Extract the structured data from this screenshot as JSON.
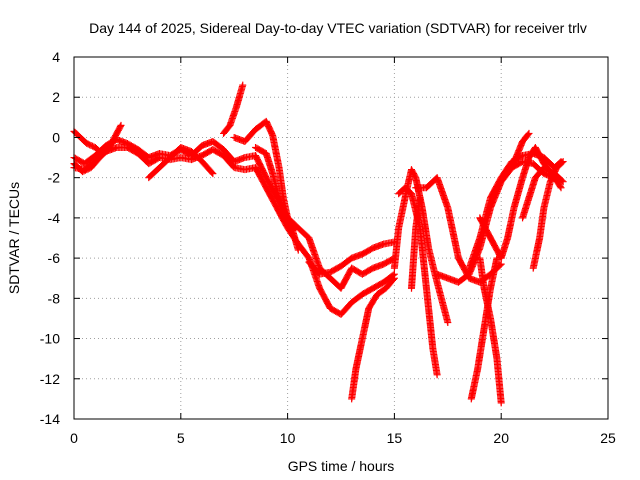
{
  "chart_data": {
    "type": "scatter",
    "title": "Day 144 of 2025, Sidereal Day-to-day VTEC variation (SDTVAR) for receiver trlv",
    "xlabel": "GPS time / hours",
    "ylabel": "SDTVAR / TECUs",
    "xlim": [
      0,
      25
    ],
    "ylim": [
      -14,
      4
    ],
    "x_ticks": [
      0,
      5,
      10,
      15,
      20,
      25
    ],
    "y_ticks": [
      4,
      2,
      0,
      -2,
      -4,
      -6,
      -8,
      -10,
      -12,
      -14
    ],
    "grid": true,
    "marker": "plus",
    "color": "#ff0000",
    "series": [
      {
        "points": [
          [
            0.0,
            -1.0
          ],
          [
            0.5,
            -1.3
          ],
          [
            1.0,
            -0.9
          ],
          [
            1.5,
            -0.4
          ],
          [
            2.0,
            -0.1
          ],
          [
            2.5,
            -0.3
          ],
          [
            3.0,
            -0.6
          ],
          [
            3.5,
            -1.0
          ],
          [
            4.0,
            -0.8
          ],
          [
            4.5,
            -0.9
          ],
          [
            5.0,
            -0.6
          ],
          [
            5.5,
            -0.9
          ],
          [
            6.0,
            -0.4
          ],
          [
            6.5,
            -0.2
          ],
          [
            7.0,
            -0.6
          ],
          [
            7.5,
            -1.2
          ],
          [
            8.0,
            -1.0
          ],
          [
            8.5,
            -0.9
          ],
          [
            9.0,
            -2.0
          ],
          [
            9.5,
            -3.0
          ],
          [
            10.0,
            -4.0
          ],
          [
            10.5,
            -4.5
          ],
          [
            11.0,
            -5.0
          ],
          [
            11.5,
            -6.5
          ],
          [
            12.0,
            -7.0
          ],
          [
            12.5,
            -7.5
          ],
          [
            13.0,
            -6.5
          ],
          [
            13.5,
            -6.8
          ],
          [
            14.0,
            -6.5
          ],
          [
            14.5,
            -6.3
          ],
          [
            15.0,
            -6.0
          ]
        ]
      },
      {
        "points": [
          [
            0.0,
            -1.5
          ],
          [
            0.5,
            -1.6
          ],
          [
            1.0,
            -1.2
          ],
          [
            1.5,
            -0.7
          ],
          [
            2.0,
            -0.5
          ],
          [
            2.5,
            -0.5
          ],
          [
            3.0,
            -0.8
          ],
          [
            3.5,
            -1.3
          ],
          [
            4.0,
            -1.0
          ],
          [
            4.5,
            -1.1
          ],
          [
            5.0,
            -1.0
          ],
          [
            5.5,
            -1.1
          ],
          [
            6.0,
            -0.9
          ],
          [
            6.5,
            -0.6
          ],
          [
            7.0,
            -0.9
          ],
          [
            7.5,
            -1.5
          ],
          [
            8.0,
            -1.6
          ],
          [
            8.5,
            -1.5
          ],
          [
            9.0,
            -2.5
          ],
          [
            9.5,
            -3.5
          ],
          [
            10.0,
            -4.5
          ],
          [
            10.5,
            -5.3
          ],
          [
            11.0,
            -6.0
          ],
          [
            11.5,
            -7.5
          ],
          [
            12.0,
            -8.5
          ],
          [
            12.5,
            -8.8
          ],
          [
            13.0,
            -8.2
          ],
          [
            13.5,
            -7.8
          ],
          [
            14.0,
            -7.5
          ],
          [
            14.5,
            -7.2
          ],
          [
            15.0,
            -6.8
          ]
        ]
      },
      {
        "points": [
          [
            0.0,
            0.3
          ],
          [
            0.3,
            0.0
          ],
          [
            0.6,
            -0.3
          ],
          [
            1.0,
            -0.5
          ],
          [
            1.3,
            -0.8
          ],
          [
            1.7,
            -0.3
          ]
        ]
      },
      {
        "points": [
          [
            0.0,
            -1.3
          ],
          [
            0.4,
            -1.7
          ],
          [
            0.8,
            -1.5
          ],
          [
            1.2,
            -1.0
          ],
          [
            1.6,
            -0.6
          ],
          [
            2.2,
            0.6
          ]
        ]
      },
      {
        "points": [
          [
            3.5,
            -2.0
          ],
          [
            4.0,
            -1.5
          ],
          [
            4.5,
            -1.0
          ],
          [
            5.0,
            -0.5
          ],
          [
            5.5,
            -0.7
          ],
          [
            6.0,
            -1.2
          ],
          [
            6.5,
            -1.8
          ]
        ]
      },
      {
        "points": [
          [
            7.0,
            0.2
          ],
          [
            7.3,
            0.6
          ],
          [
            7.6,
            1.5
          ],
          [
            7.9,
            2.6
          ]
        ]
      },
      {
        "points": [
          [
            7.5,
            0.0
          ],
          [
            8.0,
            -0.2
          ],
          [
            8.5,
            0.4
          ],
          [
            9.0,
            0.8
          ],
          [
            9.3,
            0.1
          ],
          [
            9.6,
            -1.5
          ],
          [
            9.8,
            -3.0
          ],
          [
            10.0,
            -4.0
          ],
          [
            10.3,
            -4.6
          ]
        ]
      },
      {
        "points": [
          [
            8.5,
            -0.5
          ],
          [
            9.0,
            -0.8
          ],
          [
            9.3,
            -1.8
          ],
          [
            9.6,
            -3.0
          ],
          [
            9.9,
            -3.8
          ],
          [
            10.2,
            -4.5
          ],
          [
            10.5,
            -5.6
          ]
        ]
      },
      {
        "points": [
          [
            13.0,
            -13.0
          ],
          [
            13.2,
            -11.5
          ],
          [
            13.5,
            -10.0
          ],
          [
            13.8,
            -8.5
          ],
          [
            14.2,
            -7.8
          ],
          [
            14.6,
            -7.5
          ],
          [
            15.0,
            -7.0
          ]
        ]
      },
      {
        "points": [
          [
            11.0,
            -6.2
          ],
          [
            11.5,
            -6.8
          ],
          [
            12.0,
            -6.7
          ],
          [
            12.5,
            -6.4
          ],
          [
            13.0,
            -6.0
          ],
          [
            13.5,
            -5.8
          ],
          [
            14.0,
            -5.5
          ],
          [
            14.5,
            -5.3
          ],
          [
            15.0,
            -5.2
          ]
        ]
      },
      {
        "points": [
          [
            15.0,
            -6.5
          ],
          [
            15.2,
            -4.5
          ],
          [
            15.4,
            -3.5
          ],
          [
            15.6,
            -2.5
          ],
          [
            15.8,
            -1.6
          ],
          [
            16.0,
            -2.0
          ],
          [
            16.3,
            -3.5
          ],
          [
            16.6,
            -5.5
          ],
          [
            16.9,
            -6.8
          ],
          [
            17.2,
            -8.0
          ],
          [
            17.5,
            -9.2
          ]
        ]
      },
      {
        "points": [
          [
            15.2,
            -2.8
          ],
          [
            15.5,
            -2.5
          ],
          [
            15.8,
            -2.8
          ],
          [
            16.2,
            -4.5
          ],
          [
            16.5,
            -7.5
          ],
          [
            16.8,
            -10.5
          ],
          [
            17.0,
            -11.8
          ]
        ]
      },
      {
        "points": [
          [
            16.0,
            -2.5
          ],
          [
            16.5,
            -2.5
          ],
          [
            17.0,
            -2.0
          ],
          [
            17.5,
            -3.5
          ],
          [
            18.0,
            -6.0
          ],
          [
            18.5,
            -7.0
          ],
          [
            19.0,
            -7.2
          ],
          [
            19.5,
            -6.8
          ],
          [
            20.0,
            -6.3
          ]
        ]
      },
      {
        "points": [
          [
            15.8,
            -7.5
          ],
          [
            15.9,
            -6.0
          ],
          [
            16.0,
            -4.5
          ],
          [
            16.2,
            -3.0
          ]
        ]
      },
      {
        "points": [
          [
            17.0,
            -6.8
          ],
          [
            17.5,
            -7.0
          ],
          [
            18.0,
            -7.2
          ],
          [
            18.5,
            -6.8
          ],
          [
            19.0,
            -5.5
          ],
          [
            19.5,
            -3.5
          ],
          [
            20.0,
            -2.2
          ],
          [
            20.5,
            -1.5
          ],
          [
            21.0,
            -1.2
          ],
          [
            21.5,
            -1.3
          ],
          [
            22.0,
            -1.8
          ],
          [
            22.5,
            -2.0
          ]
        ]
      },
      {
        "points": [
          [
            18.5,
            -6.5
          ],
          [
            19.0,
            -5.0
          ],
          [
            19.5,
            -3.0
          ],
          [
            20.0,
            -2.0
          ],
          [
            20.5,
            -1.2
          ],
          [
            21.0,
            -0.9
          ],
          [
            21.5,
            -0.8
          ],
          [
            22.0,
            -1.0
          ],
          [
            22.5,
            -1.5
          ],
          [
            22.8,
            -1.2
          ]
        ]
      },
      {
        "points": [
          [
            18.6,
            -13.0
          ],
          [
            18.9,
            -11.5
          ],
          [
            19.2,
            -9.5
          ],
          [
            19.5,
            -7.5
          ],
          [
            19.8,
            -6.0
          ]
        ]
      },
      {
        "points": [
          [
            20.0,
            -13.2
          ],
          [
            19.8,
            -11.0
          ],
          [
            19.5,
            -9.0
          ],
          [
            19.2,
            -7.5
          ],
          [
            19.0,
            -6.0
          ]
        ]
      },
      {
        "points": [
          [
            19.0,
            -4.0
          ],
          [
            19.5,
            -5.0
          ],
          [
            20.0,
            -6.0
          ],
          [
            20.3,
            -5.0
          ],
          [
            20.6,
            -3.5
          ],
          [
            21.0,
            -2.0
          ],
          [
            21.3,
            -1.0
          ],
          [
            21.6,
            -0.5
          ],
          [
            22.0,
            -1.3
          ],
          [
            22.5,
            -2.0
          ],
          [
            22.8,
            -2.5
          ]
        ]
      },
      {
        "points": [
          [
            20.5,
            -1.5
          ],
          [
            21.0,
            -0.2
          ],
          [
            21.3,
            0.2
          ]
        ]
      },
      {
        "points": [
          [
            21.5,
            -6.5
          ],
          [
            21.8,
            -5.0
          ],
          [
            22.0,
            -3.5
          ],
          [
            22.3,
            -2.2
          ],
          [
            22.6,
            -1.5
          ],
          [
            22.9,
            -1.2
          ]
        ]
      },
      {
        "points": [
          [
            21.0,
            -4.0
          ],
          [
            21.3,
            -3.0
          ],
          [
            21.6,
            -2.0
          ],
          [
            22.0,
            -1.5
          ],
          [
            22.5,
            -1.8
          ],
          [
            22.9,
            -2.2
          ]
        ]
      }
    ]
  }
}
